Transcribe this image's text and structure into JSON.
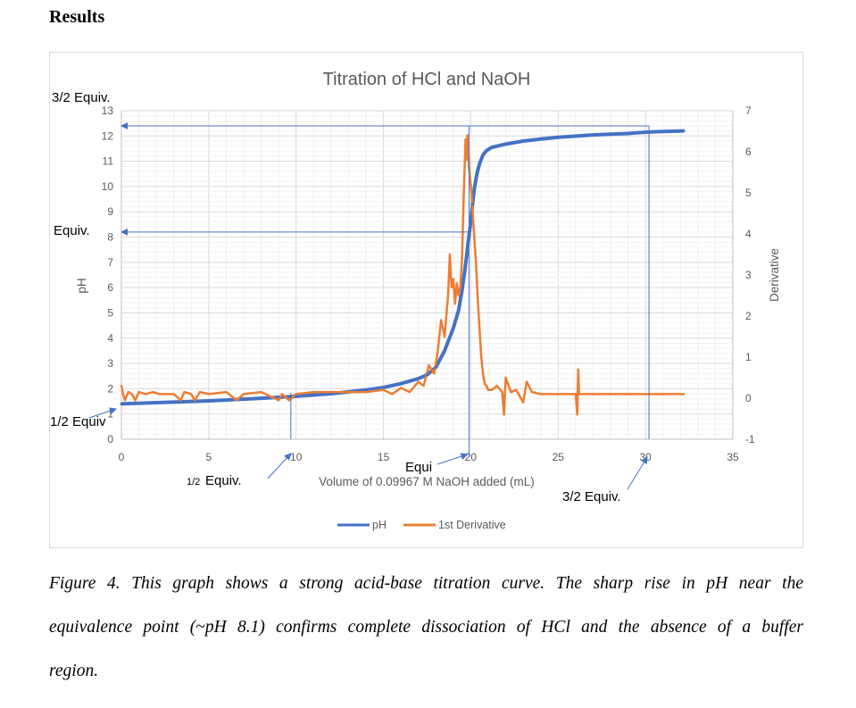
{
  "heading": "Results",
  "caption": [
    "Figure 4. This graph shows a strong acid-base titration curve. The sharp rise in pH near the",
    "equivalence point (~pH 8.1) confirms complete dissociation of HCl and the absence of a buffer",
    "region."
  ],
  "chart_data": {
    "type": "line",
    "title": "Titration of HCl and NaOH",
    "xlabel": "Volume of 0.09967 M NaOH added (mL)",
    "ylabel": "pH",
    "y2label": "Derivative",
    "xlim": [
      0,
      35
    ],
    "ylim": [
      0,
      13
    ],
    "y2lim": [
      -1,
      7
    ],
    "xticks": [
      "0",
      "5",
      "10",
      "15",
      "20",
      "25",
      "30",
      "35"
    ],
    "yticks": [
      "0",
      "1",
      "2",
      "3",
      "4",
      "5",
      "6",
      "7",
      "8",
      "9",
      "10",
      "11",
      "12",
      "13"
    ],
    "y2ticks": [
      "-1",
      "0",
      "1",
      "2",
      "3",
      "4",
      "5",
      "6",
      "7"
    ],
    "grid": true,
    "legend_position": "bottom",
    "series": [
      {
        "name": "pH",
        "axis": "left",
        "color": "#4472c4",
        "x": [
          0,
          2,
          5,
          8,
          10,
          12,
          14,
          15,
          16,
          17,
          17.5,
          18,
          18.5,
          19,
          19.3,
          19.5,
          19.7,
          19.85,
          20,
          20.1,
          20.2,
          20.35,
          20.5,
          20.7,
          20.9,
          21.2,
          22,
          23,
          24,
          25,
          27,
          29,
          30,
          31,
          32.2
        ],
        "y": [
          1.4,
          1.45,
          1.52,
          1.62,
          1.7,
          1.8,
          1.95,
          2.05,
          2.2,
          2.4,
          2.55,
          2.85,
          3.5,
          4.4,
          5.1,
          5.9,
          6.9,
          7.8,
          8.6,
          9.3,
          9.9,
          10.5,
          10.9,
          11.25,
          11.42,
          11.55,
          11.68,
          11.8,
          11.88,
          11.95,
          12.04,
          12.1,
          12.15,
          12.18,
          12.2
        ]
      },
      {
        "name": "1st Derivative",
        "axis": "right",
        "color": "#ed7d31",
        "x": [
          0,
          0.1,
          0.2,
          0.4,
          0.6,
          0.8,
          1,
          1.4,
          1.8,
          2.2,
          3,
          3.4,
          3.6,
          4,
          4.2,
          4.5,
          5,
          6,
          6.6,
          7,
          8,
          9,
          9.2,
          9.6,
          10,
          11,
          12,
          13,
          14,
          15,
          15.5,
          16,
          16.5,
          17,
          17.3,
          17.6,
          17.9,
          18.1,
          18.3,
          18.5,
          18.7,
          18.8,
          18.9,
          19,
          19.1,
          19.2,
          19.3,
          19.4,
          19.5,
          19.6,
          19.7,
          19.75,
          19.8,
          19.85,
          19.9,
          20,
          20.1,
          20.2,
          20.3,
          20.4,
          20.5,
          20.6,
          20.7,
          20.8,
          20.9,
          21,
          21.2,
          21.5,
          21.8,
          21.9,
          22,
          22.3,
          22.6,
          23,
          23.2,
          23.5,
          24,
          25,
          26,
          26.1,
          26.15,
          26.2,
          27,
          28,
          29,
          30,
          31,
          32,
          32.2
        ],
        "y": [
          0.3,
          0.1,
          -0.05,
          0.15,
          0.1,
          -0.05,
          0.15,
          0.1,
          0.15,
          0.1,
          0.1,
          -0.05,
          0.15,
          0.1,
          -0.05,
          0.15,
          0.1,
          0.15,
          -0.05,
          0.1,
          0.15,
          -0.05,
          0.1,
          -0.05,
          0.1,
          0.15,
          0.15,
          0.15,
          0.15,
          0.2,
          0.1,
          0.25,
          0.15,
          0.4,
          0.3,
          0.8,
          0.6,
          1.1,
          1.9,
          1.5,
          2.5,
          3.5,
          2.7,
          2.9,
          2.3,
          2.8,
          2.5,
          2.7,
          3.4,
          5.0,
          6.3,
          5.8,
          6.4,
          6.2,
          5.6,
          5.2,
          4.6,
          3.9,
          3.3,
          2.4,
          1.7,
          1.0,
          0.6,
          0.35,
          0.3,
          0.2,
          0.2,
          0.3,
          0.15,
          -0.4,
          0.5,
          0.15,
          0.2,
          -0.1,
          0.4,
          0.15,
          0.1,
          0.1,
          0.1,
          -0.4,
          0.7,
          0.1,
          0.1,
          0.1,
          0.1,
          0.1,
          0.1,
          0.1,
          0.1
        ]
      }
    ],
    "annotations": {
      "three_halves_left": "3/2 Equiv.",
      "equiv_left": "Equiv.",
      "half_left": "1/2 Equiv",
      "half_bottom_small": "1/2",
      "half_bottom": "Equiv.",
      "equi_bottom": "Equi",
      "three_halves_bottom": "3/2 Equiv.",
      "equiv_volume": 19.9,
      "equiv_ph": 8.2,
      "half_volume": 9.7,
      "three_halves_volume": 30.2,
      "three_halves_ph": 12.4
    }
  }
}
